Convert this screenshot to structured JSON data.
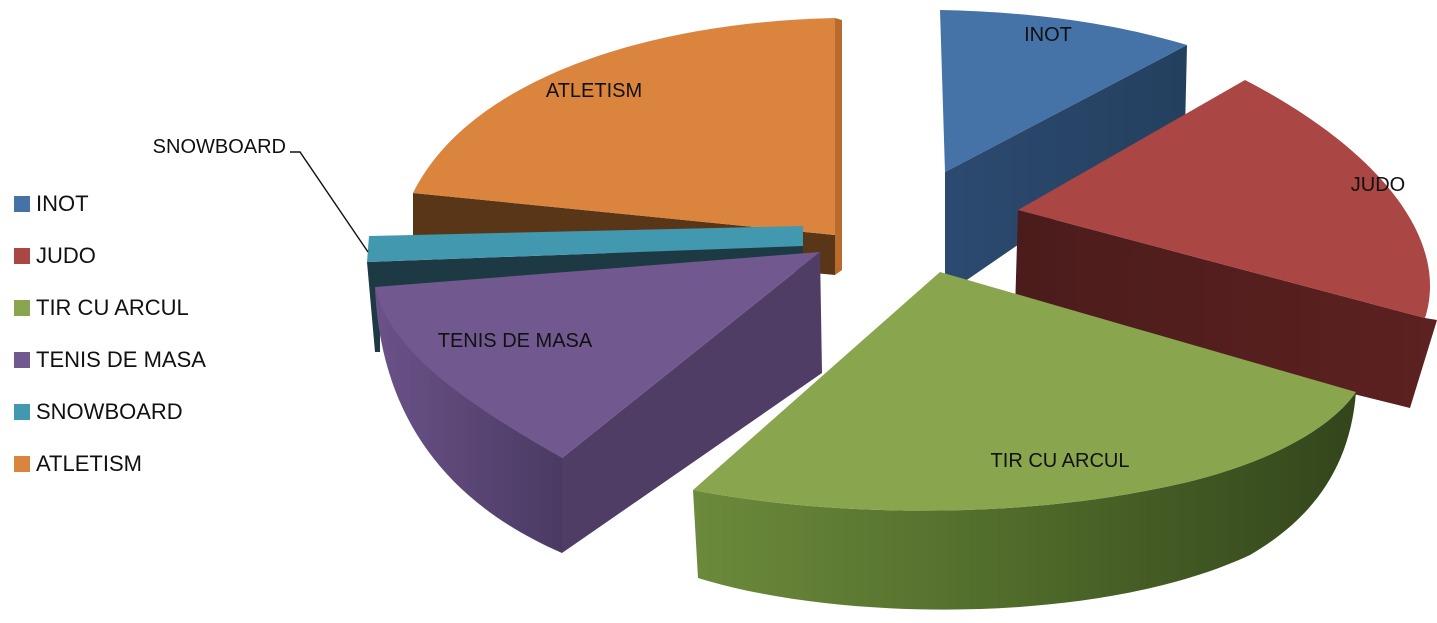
{
  "chart_data": {
    "type": "pie",
    "title": "",
    "categories": [
      "INOT",
      "JUDO",
      "TIR CU ARCUL",
      "TENIS DE MASA",
      "SNOWBOARD",
      "ATLETISM"
    ],
    "values": [
      10,
      17,
      31,
      14,
      2,
      26
    ],
    "colors": [
      "#4572A7",
      "#AA4643",
      "#89A54E",
      "#71588F",
      "#4198AF",
      "#DB843D"
    ],
    "legend_position": "left",
    "exploded": true,
    "three_d": true
  }
}
